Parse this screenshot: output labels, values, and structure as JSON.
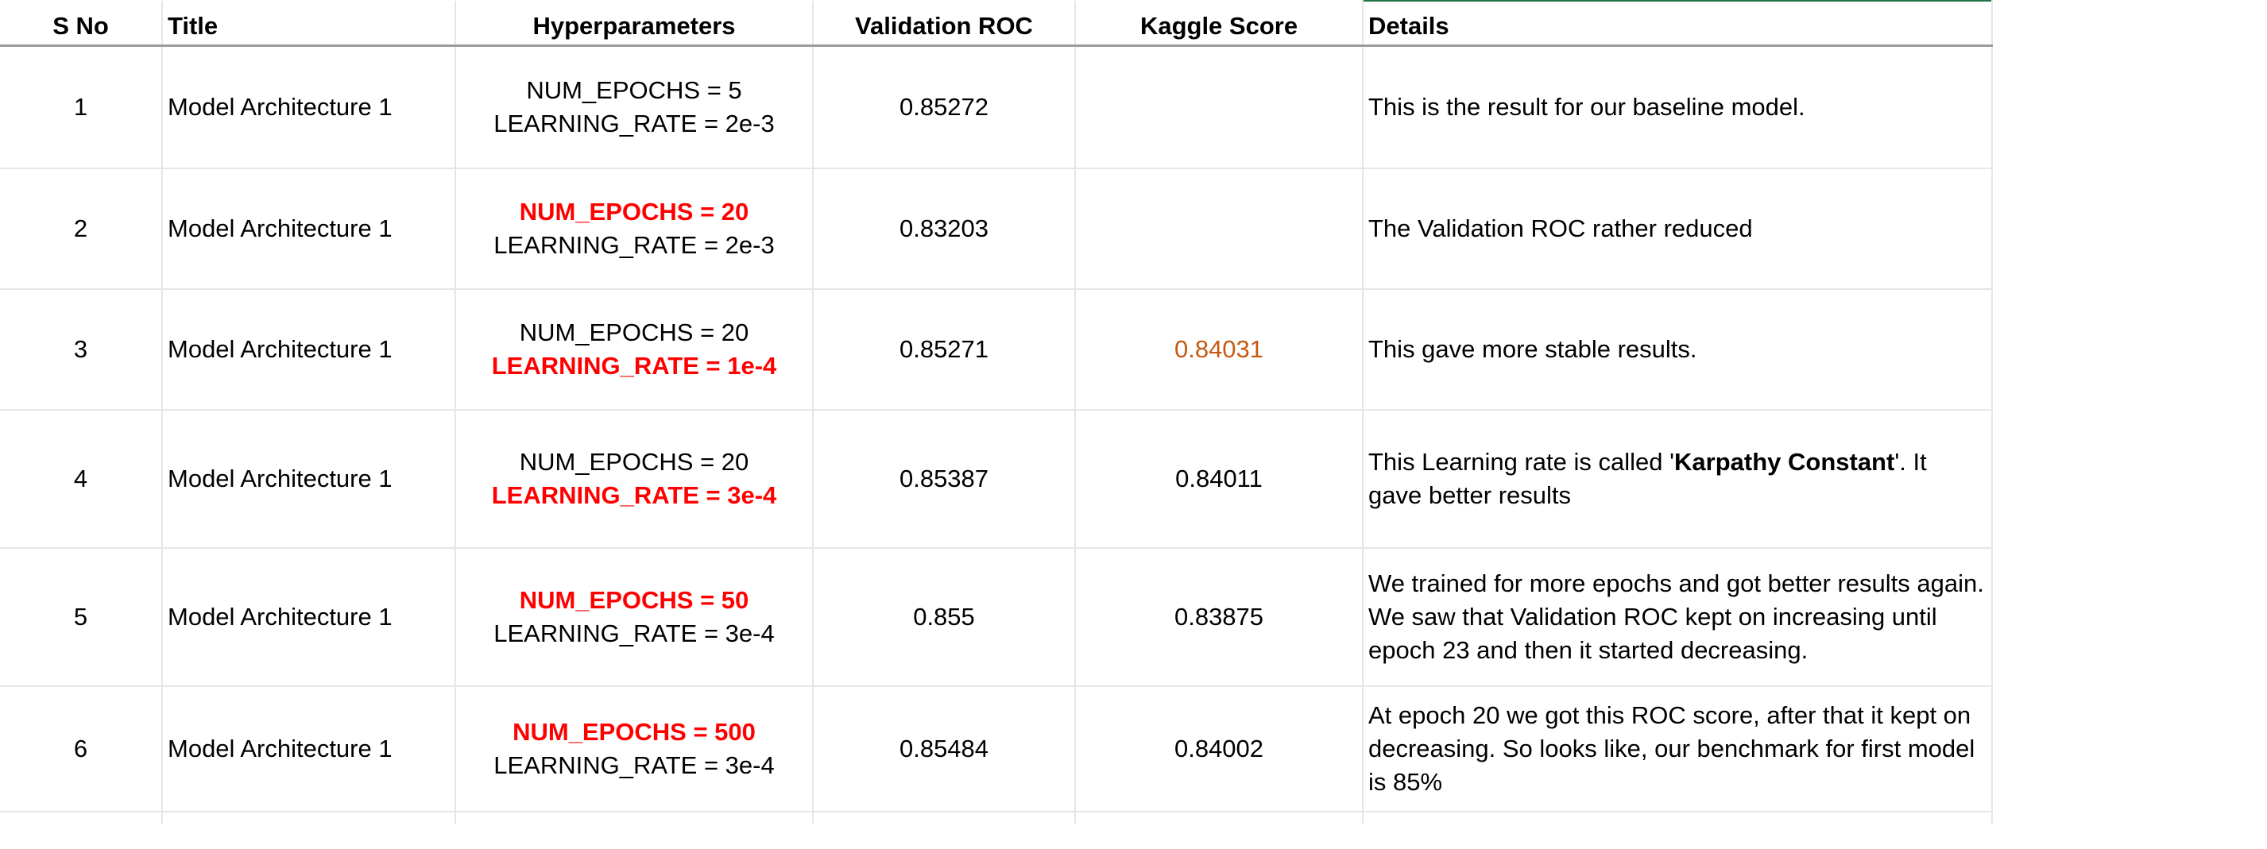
{
  "headers": {
    "sno": "S No",
    "title": "Title",
    "hyper": "Hyperparameters",
    "roc": "Validation ROC",
    "kaggle": "Kaggle Score",
    "details": "Details"
  },
  "rows": [
    {
      "sno": "1",
      "title": "Model Architecture 1",
      "hp1": "NUM_EPOCHS = 5",
      "hp2": "LEARNING_RATE = 2e-3",
      "roc": "0.85272",
      "kaggle": "",
      "details": "This is the result for our baseline model."
    },
    {
      "sno": "2",
      "title": "Model Architecture 1",
      "hp1": "NUM_EPOCHS = 20",
      "hp2": "LEARNING_RATE = 2e-3",
      "roc": "0.83203",
      "kaggle": "",
      "details": "The Validation ROC rather reduced"
    },
    {
      "sno": "3",
      "title": "Model Architecture 1",
      "hp1": "NUM_EPOCHS = 20",
      "hp2": "LEARNING_RATE = 1e-4",
      "roc": "0.85271",
      "kaggle": "0.84031",
      "details": "This gave more stable results."
    },
    {
      "sno": "4",
      "title": "Model Architecture 1",
      "hp1": "NUM_EPOCHS = 20",
      "hp2": "LEARNING_RATE = 3e-4",
      "roc": "0.85387",
      "kaggle": "0.84011",
      "details_pre": "This Learning rate is called '",
      "details_bold": "Karpathy Constant",
      "details_post": "'. It gave better results"
    },
    {
      "sno": "5",
      "title": "Model Architecture 1",
      "hp1": "NUM_EPOCHS = 50",
      "hp2": "LEARNING_RATE = 3e-4",
      "roc": "0.855",
      "kaggle": "0.83875",
      "details": "We trained for more epochs and got better results again. We saw that Validation ROC kept on increasing until epoch 23 and then it started decreasing."
    },
    {
      "sno": "6",
      "title": "Model Architecture 1",
      "hp1": "NUM_EPOCHS = 500",
      "hp2": "LEARNING_RATE = 3e-4",
      "roc": "0.85484",
      "kaggle": "0.84002",
      "details": "At epoch 20 we got this ROC score, after that it kept on decreasing. So looks like, our benchmark for first model is 85%"
    }
  ],
  "colors": {
    "changed_param": "#ff0000",
    "kaggle_highlight": "#c55a11",
    "grid": "#e6e6e6",
    "header_rule": "#9a9a9a",
    "active_cell_border": "#217346"
  }
}
